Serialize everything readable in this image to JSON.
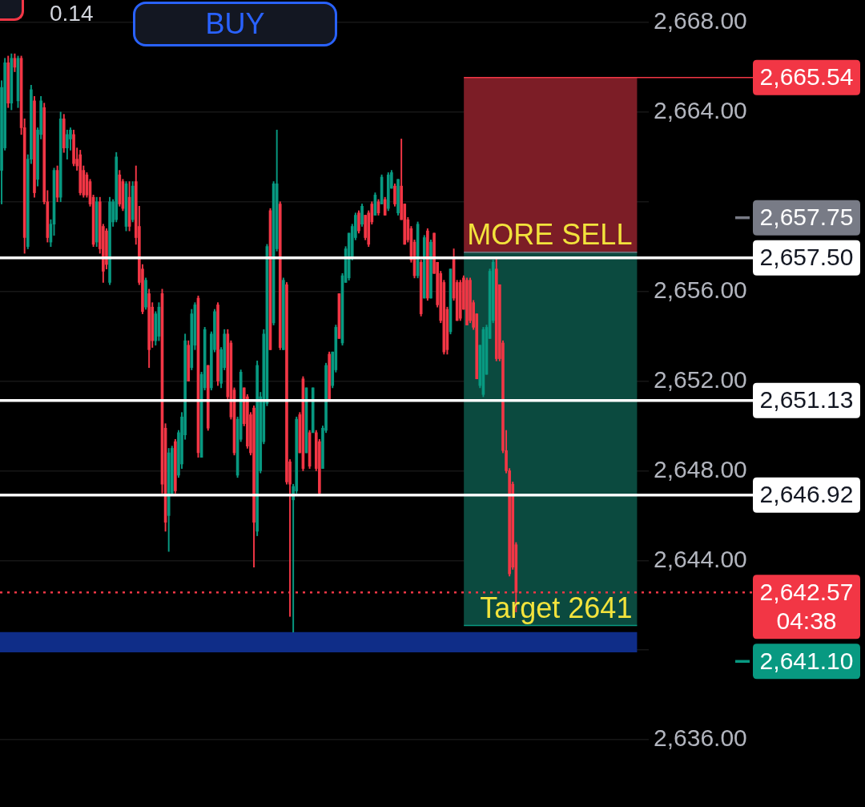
{
  "chart_data": {
    "type": "candlestick",
    "categories": [
      null,
      null,
      null,
      null,
      null,
      null,
      null,
      null,
      null,
      null,
      null,
      null,
      null,
      null,
      null,
      null,
      null,
      null,
      null,
      null,
      null,
      null,
      null,
      null,
      null,
      null,
      null,
      null,
      null,
      null,
      null,
      null,
      null,
      null,
      null,
      null,
      null,
      null,
      null,
      null,
      null,
      null,
      null,
      null,
      null,
      null,
      null,
      null,
      null,
      null,
      null,
      null,
      null,
      null,
      null,
      null,
      null,
      null,
      null,
      null,
      null,
      null,
      null,
      null,
      null,
      null,
      null,
      null,
      null,
      null,
      null,
      null,
      null,
      null,
      null,
      null,
      null,
      null,
      null,
      null,
      null,
      null,
      null,
      null,
      null,
      null,
      null,
      null,
      null,
      null,
      null,
      null,
      null,
      null,
      null,
      null,
      null,
      null,
      null,
      null,
      null,
      null,
      null,
      null,
      null,
      null,
      null,
      null,
      null,
      null,
      null,
      null,
      null,
      null,
      null,
      null,
      null,
      null,
      null,
      null,
      null,
      null,
      null,
      null,
      null,
      null,
      null,
      null,
      null,
      null,
      null,
      null,
      null,
      null,
      null,
      null,
      null,
      null,
      null,
      null,
      null,
      null,
      null,
      null,
      null,
      null,
      null,
      null,
      null,
      null,
      null,
      null,
      null,
      null,
      null,
      null,
      null,
      null,
      null,
      null,
      null,
      null,
      null,
      null,
      null,
      null,
      null,
      null,
      null,
      null,
      null,
      null,
      null,
      null,
      null,
      null,
      null,
      null,
      null,
      null,
      null,
      null,
      null,
      null,
      null,
      null,
      null,
      null,
      null,
      null,
      null,
      null,
      null,
      null,
      null,
      null,
      null,
      null
    ],
    "ohlc": [
      [
        2661.4,
        2665.4,
        2659.9,
        2665.1
      ],
      [
        2662.4,
        2666.4,
        2662.3,
        2666.2
      ],
      [
        2666.2,
        2666.5,
        2664.2,
        2664.4
      ],
      [
        2664.4,
        2666.6,
        2664.1,
        2666.4
      ],
      [
        2666.4,
        2666.6,
        2665.8,
        2666.0
      ],
      [
        2664.5,
        2666.5,
        2664.2,
        2666.4
      ],
      [
        2666.4,
        2666.5,
        2663.0,
        2663.3
      ],
      [
        2663.3,
        2663.7,
        2657.7,
        2658.4
      ],
      [
        2658.0,
        2662.1,
        2657.9,
        2661.9
      ],
      [
        2661.9,
        2665.2,
        2661.7,
        2665.0
      ],
      [
        2664.5,
        2664.7,
        2660.2,
        2660.4
      ],
      [
        2661.0,
        2663.3,
        2660.7,
        2663.2
      ],
      [
        2663.0,
        2664.7,
        2662.8,
        2664.5
      ],
      [
        2664.2,
        2664.4,
        2659.9,
        2660.0
      ],
      [
        2660.0,
        2660.5,
        2658.2,
        2658.4
      ],
      [
        2658.2,
        2659.2,
        2658.0,
        2659.0
      ],
      [
        2659.0,
        2661.5,
        2658.5,
        2661.4
      ],
      [
        2661.4,
        2661.6,
        2660.0,
        2660.2
      ],
      [
        2660.2,
        2664.0,
        2660.0,
        2663.7
      ],
      [
        2663.7,
        2663.9,
        2662.2,
        2662.4
      ],
      [
        2662.4,
        2663.2,
        2661.9,
        2663.0
      ],
      [
        2662.8,
        2663.3,
        2662.3,
        2663.2
      ],
      [
        2663.0,
        2663.2,
        2661.6,
        2661.7
      ],
      [
        2661.9,
        2662.4,
        2661.4,
        2661.6
      ],
      [
        2662.1,
        2662.3,
        2660.3,
        2660.4
      ],
      [
        2661.4,
        2661.6,
        2660.2,
        2660.3
      ],
      [
        2661.2,
        2661.3,
        2660.2,
        2660.3
      ],
      [
        2660.9,
        2661.0,
        2659.8,
        2659.9
      ],
      [
        2660.2,
        2660.3,
        2658.0,
        2658.1
      ],
      [
        2658.2,
        2660.2,
        2658.0,
        2660.0
      ],
      [
        2660.0,
        2660.2,
        2657.7,
        2657.9
      ],
      [
        2658.9,
        2659.0,
        2656.4,
        2656.9
      ],
      [
        2658.7,
        2658.8,
        2657.0,
        2657.2
      ],
      [
        2656.4,
        2660.2,
        2656.3,
        2660.0
      ],
      [
        2659.1,
        2660.1,
        2658.9,
        2660.0
      ],
      [
        2659.2,
        2662.2,
        2659.1,
        2662.0
      ],
      [
        2661.2,
        2661.4,
        2659.8,
        2659.9
      ],
      [
        2660.9,
        2661.0,
        2659.6,
        2659.7
      ],
      [
        2658.9,
        2660.9,
        2658.7,
        2660.8
      ],
      [
        2660.2,
        2660.9,
        2658.7,
        2658.9
      ],
      [
        2659.2,
        2660.9,
        2659.1,
        2660.7
      ],
      [
        2660.9,
        2661.6,
        2658.1,
        2658.4
      ],
      [
        2658.9,
        2659.8,
        2656.3,
        2656.4
      ],
      [
        2657.0,
        2657.2,
        2655.0,
        2655.1
      ],
      [
        2655.3,
        2656.6,
        2655.2,
        2656.5
      ],
      [
        2655.9,
        2656.1,
        2652.6,
        2653.4
      ],
      [
        2655.3,
        2655.5,
        2653.5,
        2653.8
      ],
      [
        2653.8,
        2655.1,
        2653.6,
        2655.0
      ],
      [
        2654.0,
        2655.5,
        2653.8,
        2655.3
      ],
      [
        2655.9,
        2656.1,
        2647.0,
        2647.4
      ],
      [
        2649.9,
        2650.1,
        2645.3,
        2645.7
      ],
      [
        2646.0,
        2649.0,
        2644.4,
        2648.8
      ],
      [
        2647.0,
        2649.1,
        2646.9,
        2649.0
      ],
      [
        2649.3,
        2649.4,
        2647.0,
        2647.1
      ],
      [
        2647.8,
        2649.8,
        2647.7,
        2649.7
      ],
      [
        2648.3,
        2650.6,
        2648.1,
        2650.4
      ],
      [
        2649.6,
        2654.1,
        2649.4,
        2653.8
      ],
      [
        2653.6,
        2653.8,
        2652.0,
        2652.0
      ],
      [
        2652.6,
        2655.2,
        2652.5,
        2655.0
      ],
      [
        2653.6,
        2655.5,
        2653.4,
        2655.4
      ],
      [
        2655.7,
        2655.8,
        2648.6,
        2648.8
      ],
      [
        2648.6,
        2652.4,
        2648.6,
        2652.3
      ],
      [
        2651.7,
        2654.4,
        2651.6,
        2654.3
      ],
      [
        2652.7,
        2652.7,
        2649.8,
        2649.9
      ],
      [
        2651.7,
        2654.2,
        2651.6,
        2654.1
      ],
      [
        2653.4,
        2655.2,
        2653.3,
        2655.1
      ],
      [
        2655.4,
        2655.5,
        2651.8,
        2652.0
      ],
      [
        2651.9,
        2653.5,
        2651.7,
        2653.4
      ],
      [
        2652.6,
        2654.3,
        2652.5,
        2654.1
      ],
      [
        2654.1,
        2654.3,
        2651.2,
        2651.3
      ],
      [
        2653.7,
        2653.8,
        2650.3,
        2650.4
      ],
      [
        2651.6,
        2651.7,
        2648.7,
        2648.8
      ],
      [
        2647.8,
        2650.4,
        2647.7,
        2650.3
      ],
      [
        2649.4,
        2652.5,
        2649.3,
        2652.4
      ],
      [
        2651.7,
        2651.7,
        2650.0,
        2650.1
      ],
      [
        2651.3,
        2651.4,
        2649.0,
        2649.1
      ],
      [
        2650.5,
        2650.6,
        2648.7,
        2648.8
      ],
      [
        2650.8,
        2650.9,
        2643.7,
        2645.7
      ],
      [
        2645.3,
        2652.9,
        2645.1,
        2652.7
      ],
      [
        2648.0,
        2651.5,
        2647.9,
        2651.3
      ],
      [
        2649.3,
        2654.3,
        2649.2,
        2654.1
      ],
      [
        2651.0,
        2658.1,
        2650.9,
        2658.0
      ],
      [
        2659.6,
        2659.7,
        2653.4,
        2653.4
      ],
      [
        2654.6,
        2660.9,
        2654.5,
        2660.8
      ],
      [
        2657.9,
        2663.2,
        2657.8,
        2660.8
      ],
      [
        2659.9,
        2660.0,
        2653.4,
        2653.5
      ],
      [
        2653.4,
        2656.6,
        2653.4,
        2656.5
      ],
      [
        2656.3,
        2656.4,
        2647.4,
        2647.5
      ],
      [
        2648.4,
        2648.5,
        2641.5,
        2647.4
      ],
      [
        2646.7,
        2647.4,
        2640.8,
        2647.3
      ],
      [
        2647.1,
        2650.4,
        2647.0,
        2650.3
      ],
      [
        2650.5,
        2650.6,
        2648.8,
        2648.8
      ],
      [
        2652.1,
        2652.2,
        2648.0,
        2648.1
      ],
      [
        2648.8,
        2651.7,
        2648.8,
        2651.7
      ],
      [
        2649.7,
        2649.8,
        2648.1,
        2648.2
      ],
      [
        2649.7,
        2651.7,
        2649.7,
        2651.7
      ],
      [
        2649.7,
        2649.8,
        2648.0,
        2648.1
      ],
      [
        2649.3,
        2649.4,
        2646.9,
        2647.0
      ],
      [
        2648.1,
        2650.0,
        2648.1,
        2649.9
      ],
      [
        2649.8,
        2652.8,
        2649.7,
        2652.7
      ],
      [
        2653.2,
        2653.3,
        2651.1,
        2651.1
      ],
      [
        2651.8,
        2653.3,
        2651.7,
        2653.3
      ],
      [
        2652.5,
        2654.5,
        2652.4,
        2654.4
      ],
      [
        2655.9,
        2655.9,
        2653.9,
        2653.9
      ],
      [
        2653.7,
        2656.8,
        2653.6,
        2656.7
      ],
      [
        2656.4,
        2658.0,
        2656.4,
        2657.9
      ],
      [
        2656.6,
        2658.6,
        2656.5,
        2658.6
      ],
      [
        2657.5,
        2659.0,
        2657.4,
        2658.9
      ],
      [
        2658.4,
        2659.5,
        2658.3,
        2659.4
      ],
      [
        2659.5,
        2659.6,
        2658.6,
        2658.7
      ],
      [
        2659.0,
        2659.9,
        2658.9,
        2659.8
      ],
      [
        2659.4,
        2659.4,
        2658.3,
        2658.4
      ],
      [
        2659.5,
        2659.6,
        2658.0,
        2658.1
      ],
      [
        2659.9,
        2660.0,
        2659.0,
        2659.1
      ],
      [
        2659.4,
        2660.4,
        2659.4,
        2660.3
      ],
      [
        2660.0,
        2660.1,
        2659.4,
        2659.5
      ],
      [
        2659.9,
        2661.2,
        2659.9,
        2661.1
      ],
      [
        2660.1,
        2660.2,
        2659.4,
        2659.4
      ],
      [
        2659.7,
        2661.3,
        2659.6,
        2661.2
      ],
      [
        2660.6,
        2661.4,
        2660.6,
        2661.3
      ],
      [
        2660.7,
        2660.8,
        2659.8,
        2659.9
      ],
      [
        2659.5,
        2661.0,
        2659.4,
        2661.0
      ],
      [
        2660.7,
        2662.8,
        2659.2,
        2659.2
      ],
      [
        2659.9,
        2659.9,
        2658.1,
        2658.1
      ],
      [
        2659.2,
        2659.3,
        2658.2,
        2658.3
      ],
      [
        2658.8,
        2658.9,
        2657.3,
        2657.4
      ],
      [
        2658.2,
        2658.3,
        2656.6,
        2656.7
      ],
      [
        2656.7,
        2659.1,
        2656.6,
        2659.0
      ],
      [
        2657.3,
        2657.4,
        2654.9,
        2655.0
      ],
      [
        2655.7,
        2658.5,
        2655.7,
        2658.4
      ],
      [
        2658.7,
        2658.8,
        2655.6,
        2655.7
      ],
      [
        2655.7,
        2658.3,
        2655.7,
        2658.2
      ],
      [
        2658.6,
        2658.6,
        2656.8,
        2656.8
      ],
      [
        2657.3,
        2657.3,
        2655.3,
        2655.4
      ],
      [
        2656.8,
        2656.9,
        2654.6,
        2654.7
      ],
      [
        2656.4,
        2656.5,
        2653.2,
        2653.3
      ],
      [
        2655.2,
        2655.3,
        2653.2,
        2653.4
      ],
      [
        2654.2,
        2657.0,
        2654.1,
        2657.0
      ],
      [
        2657.5,
        2657.9,
        2655.6,
        2655.7
      ],
      [
        2656.4,
        2656.5,
        2654.7,
        2654.7
      ],
      [
        2656.4,
        2656.5,
        2654.7,
        2654.8
      ],
      [
        2656.6,
        2656.7,
        2655.2,
        2655.2
      ],
      [
        2656.5,
        2656.6,
        2654.5,
        2654.5
      ],
      [
        2656.5,
        2656.6,
        2654.6,
        2654.7
      ],
      [
        2655.5,
        2655.6,
        2654.3,
        2654.4
      ],
      [
        2655.0,
        2655.0,
        2652.1,
        2652.1
      ],
      [
        2651.8,
        2653.6,
        2651.7,
        2653.6
      ],
      [
        2651.4,
        2654.4,
        2651.3,
        2654.3
      ],
      [
        2652.3,
        2654.5,
        2652.3,
        2654.4
      ],
      [
        2653.9,
        2657.0,
        2653.9,
        2656.9
      ],
      [
        2654.7,
        2657.4,
        2654.6,
        2657.3
      ],
      [
        2657.0,
        2657.5,
        2652.9,
        2653.0
      ],
      [
        2656.3,
        2656.3,
        2652.9,
        2653.0
      ],
      [
        2653.7,
        2653.8,
        2648.8,
        2648.9
      ],
      [
        2648.9,
        2649.8,
        2647.9,
        2648.0
      ],
      [
        2648.0,
        2648.1,
        2643.3,
        2643.4
      ],
      [
        2647.4,
        2647.5,
        2643.6,
        2643.7
      ],
      [
        2644.7,
        2644.8,
        2641.7,
        2642.57
      ],
      null,
      null,
      null,
      null,
      null,
      null,
      null,
      null,
      null,
      null,
      null,
      null,
      null,
      null,
      null,
      null,
      null,
      null,
      null,
      null,
      null,
      null,
      null,
      null,
      null,
      null,
      null,
      null,
      null,
      null,
      null,
      null,
      null,
      null,
      null,
      null,
      null,
      null,
      null,
      null
    ],
    "colors": [
      "#089981",
      "#089981",
      "#f23645",
      "#089981",
      "#f23645",
      "#089981",
      "#f23645",
      "#f23645",
      "#089981",
      "#089981",
      "#f23645",
      "#089981",
      "#089981",
      "#f23645",
      "#f23645",
      "#089981",
      "#089981",
      "#f23645",
      "#089981",
      "#f23645",
      "#089981",
      "#089981",
      "#f23645",
      "#f23645",
      "#f23645",
      "#f23645",
      "#f23645",
      "#f23645",
      "#f23645",
      "#089981",
      "#f23645",
      "#f23645",
      "#f23645",
      "#089981",
      "#089981",
      "#089981",
      "#f23645",
      "#f23645",
      "#089981",
      "#f23645",
      "#089981",
      "#f23645",
      "#f23645",
      "#f23645",
      "#089981",
      "#f23645",
      "#f23645",
      "#089981",
      "#089981",
      "#f23645",
      "#f23645",
      "#089981",
      "#089981",
      "#f23645",
      "#089981",
      "#089981",
      "#089981",
      "#f23645",
      "#089981",
      "#089981",
      "#f23645",
      "#089981",
      "#089981",
      "#f23645",
      "#089981",
      "#089981",
      "#f23645",
      "#089981",
      "#089981",
      "#f23645",
      "#f23645",
      "#f23645",
      "#089981",
      "#089981",
      "#f23645",
      "#f23645",
      "#f23645",
      "#f23645",
      "#089981",
      "#089981",
      "#089981",
      "#089981",
      "#f23645",
      "#089981",
      "#089981",
      "#f23645",
      "#089981",
      "#f23645",
      "#f23645",
      "#089981",
      "#089981",
      "#f23645",
      "#f23645",
      "#089981",
      "#f23645",
      "#089981",
      "#f23645",
      "#f23645",
      "#089981",
      "#089981",
      "#f23645",
      "#089981",
      "#089981",
      "#f23645",
      "#089981",
      "#089981",
      "#089981",
      "#089981",
      "#089981",
      "#f23645",
      "#089981",
      "#f23645",
      "#f23645",
      "#f23645",
      "#089981",
      "#f23645",
      "#089981",
      "#f23645",
      "#089981",
      "#089981",
      "#f23645",
      "#089981",
      "#f23645",
      "#f23645",
      "#f23645",
      "#f23645",
      "#f23645",
      "#089981",
      "#f23645",
      "#089981",
      "#f23645",
      "#089981",
      "#f23645",
      "#f23645",
      "#f23645",
      "#f23645",
      "#f23645",
      "#089981",
      "#f23645",
      "#f23645",
      "#f23645",
      "#f23645",
      "#f23645",
      "#f23645",
      "#f23645",
      "#f23645",
      "#089981",
      "#089981",
      "#089981",
      "#089981",
      "#089981",
      "#f23645",
      "#f23645",
      "#f23645",
      "#f23645",
      "#f23645",
      "#f23645",
      "#f23645",
      null,
      null,
      null,
      null,
      null,
      null,
      null,
      null,
      null,
      null,
      null,
      null,
      null,
      null,
      null,
      null,
      null,
      null,
      null,
      null,
      null,
      null,
      null,
      null,
      null,
      null,
      null,
      null,
      null,
      null,
      null,
      null,
      null,
      null,
      null,
      null,
      null,
      null,
      null,
      null
    ],
    "ylim": [
      2633,
      2669
    ],
    "yticks": [
      {
        "value": 2636,
        "label": "2,636.00"
      },
      {
        "value": 2640,
        "label": null
      },
      {
        "value": 2644,
        "label": "2,644.00"
      },
      {
        "value": 2648,
        "label": "2,648.00"
      },
      {
        "value": 2652,
        "label": "2,652.00"
      },
      {
        "value": 2656,
        "label": "2,656.00"
      },
      {
        "value": 2660,
        "label": null
      },
      {
        "value": 2664,
        "label": "2,664.00"
      },
      {
        "value": 2668,
        "label": "2,668.00"
      }
    ],
    "grid": "y",
    "tick_labels": "y",
    "legend": "right",
    "ref_lines": [
      {
        "axis": "y",
        "value": 2665.54,
        "label": "2,665.54",
        "color": "#f23645"
      },
      {
        "axis": "y",
        "value": 2657.75,
        "label": "2,657.75",
        "color": "#787b86"
      },
      {
        "axis": "y",
        "value": 2657.5,
        "label": "2,657.50",
        "color": "#ffffff"
      },
      {
        "axis": "y",
        "value": 2651.13,
        "label": "2,651.13",
        "color": "#ffffff"
      },
      {
        "axis": "y",
        "value": 2646.92,
        "label": "2,646.92",
        "color": "#ffffff"
      },
      {
        "axis": "y",
        "value": 2642.57,
        "label": "2,642.57",
        "color": "#f23645",
        "line_style": "dotted"
      },
      {
        "axis": "y",
        "value": 2641.1,
        "label": "2,641.10",
        "color": "#089981"
      }
    ],
    "bands": [
      {
        "axis": "y",
        "from": 2657.75,
        "to": 2665.54,
        "color": "#7c1d26",
        "label": "MORE SELL"
      },
      {
        "axis": "y",
        "from": 2641.1,
        "to": 2657.75,
        "color": "#0b4a3f"
      },
      {
        "axis": "y",
        "from": 2639.9,
        "to": 2640.8,
        "color": "#0f2d88",
        "label": "Target 2641"
      }
    ],
    "annotations": [
      "0.14",
      "BUY",
      "04:38"
    ]
  }
}
